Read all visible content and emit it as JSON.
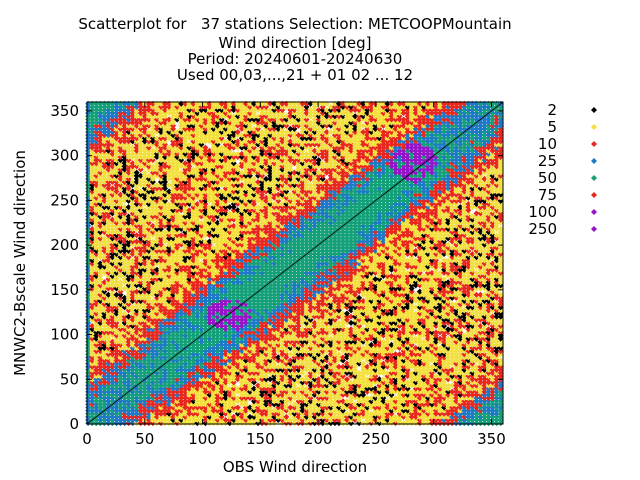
{
  "title_lines": [
    "Scatterplot for   37 stations Selection: METCOOPMountain",
    "Wind direction [deg]",
    "Period: 20240601-20240630",
    "Used 00,03,...,21 + 01 02 ... 12"
  ],
  "chart_data": {
    "type": "scatter",
    "subtype": "density-binned scatter",
    "xlabel": "OBS Wind direction",
    "ylabel": "MNWC2-Bscale Wind direction",
    "xlim": [
      0,
      360
    ],
    "ylim": [
      0,
      360
    ],
    "xticks": [
      0,
      50,
      100,
      150,
      200,
      250,
      300,
      350
    ],
    "yticks": [
      0,
      50,
      100,
      150,
      200,
      250,
      300,
      350
    ],
    "diagonal_line": true,
    "legend_placement": "right",
    "bins": [
      {
        "label": "2",
        "threshold": 2,
        "color": "#000000"
      },
      {
        "label": "5",
        "threshold": 5,
        "color": "#f2e040"
      },
      {
        "label": "10",
        "threshold": 10,
        "color": "#e8281e"
      },
      {
        "label": "25",
        "threshold": 25,
        "color": "#1e78c8"
      },
      {
        "label": "50",
        "threshold": 50,
        "color": "#14a078"
      },
      {
        "label": "75",
        "threshold": 75,
        "color": "#e8281e"
      },
      {
        "label": "100",
        "threshold": 100,
        "color": "#9614c8"
      },
      {
        "label": "250",
        "threshold": 250,
        "color": "#9614c8"
      }
    ],
    "density_bands": [
      {
        "bin": "100",
        "description": "core peaks",
        "x_range": [
          100,
          145
        ],
        "y_range": [
          100,
          145
        ]
      },
      {
        "bin": "100",
        "description": "core peaks",
        "x_range": [
          265,
          300
        ],
        "y_range": [
          270,
          315
        ]
      },
      {
        "bin": "50",
        "description": "main band along diagonal",
        "x_range": [
          60,
          320
        ],
        "y_range": [
          60,
          320
        ]
      },
      {
        "bin": "25",
        "description": "wide band along diagonal",
        "x_range": [
          20,
          345
        ],
        "y_range": [
          20,
          345
        ]
      },
      {
        "bin": "10",
        "description": "outer band",
        "x_range": [
          0,
          360
        ],
        "y_range": [
          0,
          360
        ]
      },
      {
        "bin": "5",
        "description": "off-diagonal fill",
        "x_range": [
          0,
          360
        ],
        "y_range": [
          0,
          360
        ]
      },
      {
        "bin": "2",
        "description": "sparse outliers",
        "x_range": [
          0,
          360
        ],
        "y_range": [
          0,
          360
        ]
      }
    ]
  }
}
